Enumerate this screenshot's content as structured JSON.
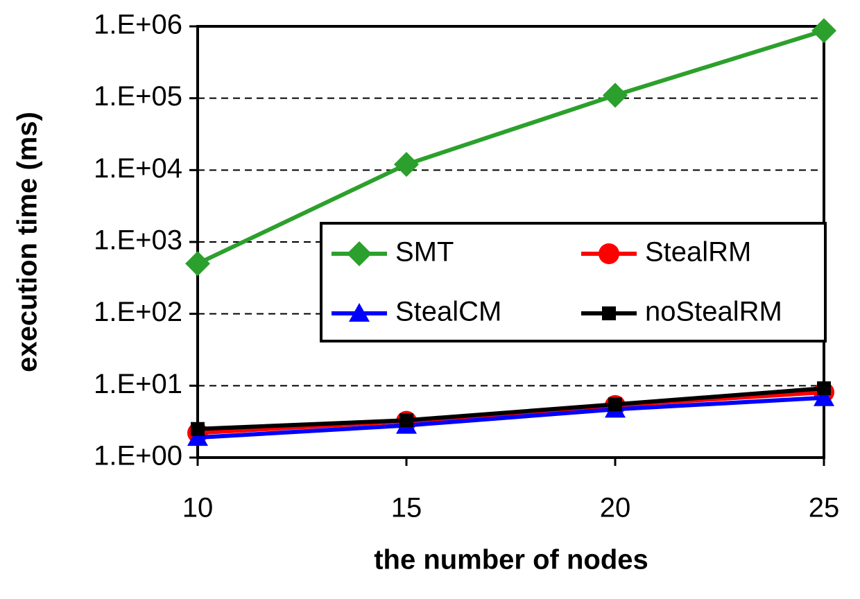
{
  "chart_data": {
    "type": "line",
    "x_label": "the number of nodes",
    "y_label": "execution time (ms)",
    "x": [
      10,
      15,
      20,
      25
    ],
    "xlim": [
      10,
      25
    ],
    "xticks": [
      10,
      15,
      20,
      25
    ],
    "ylim": [
      1,
      1000000
    ],
    "yticks": [
      {
        "value": 1,
        "label": "1.E+00"
      },
      {
        "value": 10,
        "label": "1.E+01"
      },
      {
        "value": 100,
        "label": "1.E+02"
      },
      {
        "value": 1000,
        "label": "1.E+03"
      },
      {
        "value": 10000,
        "label": "1.E+04"
      },
      {
        "value": 100000,
        "label": "1.E+05"
      },
      {
        "value": 1000000,
        "label": "1.E+06"
      }
    ],
    "log_y": true,
    "grid": true,
    "legend_loc": "right",
    "series": [
      {
        "name": "SMT",
        "color": "#2ca02c",
        "marker": "diamond",
        "values": [
          500,
          12000,
          110000,
          870000
        ]
      },
      {
        "name": "StealRM",
        "color": "#ff0000",
        "marker": "circle",
        "values": [
          2.2,
          3.2,
          5.3,
          8.1
        ]
      },
      {
        "name": "StealCM",
        "color": "#0000ff",
        "marker": "triangle",
        "values": [
          1.9,
          2.8,
          4.7,
          6.8
        ]
      },
      {
        "name": "noStealRM",
        "color": "#000000",
        "marker": "square",
        "values": [
          2.5,
          3.3,
          5.5,
          9.2
        ]
      }
    ]
  }
}
